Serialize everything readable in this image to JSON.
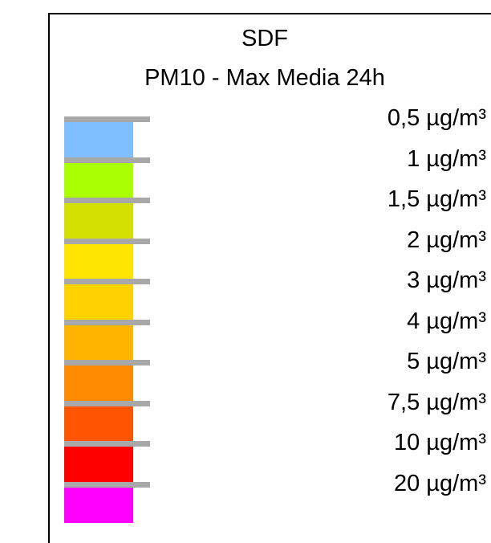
{
  "legend": {
    "title": "SDF",
    "subtitle": "PM10 - Max Media 24h",
    "classes": [
      {
        "color": "#7fbfff",
        "label": "0,5  µg/m³"
      },
      {
        "color": "#aaff00",
        "label": "1  µg/m³"
      },
      {
        "color": "#d4e000",
        "label": "1,5  µg/m³"
      },
      {
        "color": "#ffe400",
        "label": "2  µg/m³"
      },
      {
        "color": "#ffd200",
        "label": "3  µg/m³"
      },
      {
        "color": "#ffb400",
        "label": "4  µg/m³"
      },
      {
        "color": "#ff8c00",
        "label": "5  µg/m³"
      },
      {
        "color": "#ff5500",
        "label": "7,5  µg/m³"
      },
      {
        "color": "#ff0000",
        "label": "10  µg/m³"
      },
      {
        "color": "#ff00ff",
        "label": "20  µg/m³"
      }
    ],
    "tick_color": "#a8a8a8"
  }
}
